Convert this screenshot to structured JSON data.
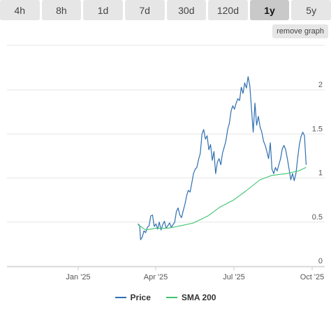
{
  "tabs": [
    {
      "label": "4h",
      "active": false
    },
    {
      "label": "8h",
      "active": false
    },
    {
      "label": "1d",
      "active": false
    },
    {
      "label": "7d",
      "active": false
    },
    {
      "label": "30d",
      "active": false
    },
    {
      "label": "120d",
      "active": false
    },
    {
      "label": "1y",
      "active": true
    },
    {
      "label": "5y",
      "active": false
    }
  ],
  "remove_graph_label": "remove graph",
  "chart_data": {
    "type": "line",
    "x_ticks": [
      "Jan '25",
      "Apr '25",
      "Jul '25",
      "Oct '25"
    ],
    "y_ticks": [
      "0",
      "0.5",
      "1",
      "1.5",
      "2"
    ],
    "ylim": [
      0,
      2.15
    ],
    "grid": true,
    "legend_placement": "bottom-center",
    "series": [
      {
        "name": "Price",
        "color": "#2e6fb0",
        "points": [
          [
            "2025-03-11",
            0.48
          ],
          [
            "2025-03-13",
            0.46
          ],
          [
            "2025-03-14",
            0.3
          ],
          [
            "2025-03-16",
            0.33
          ],
          [
            "2025-03-18",
            0.4
          ],
          [
            "2025-03-20",
            0.38
          ],
          [
            "2025-03-22",
            0.44
          ],
          [
            "2025-03-24",
            0.46
          ],
          [
            "2025-03-26",
            0.57
          ],
          [
            "2025-03-28",
            0.58
          ],
          [
            "2025-03-30",
            0.45
          ],
          [
            "2025-04-01",
            0.48
          ],
          [
            "2025-04-03",
            0.42
          ],
          [
            "2025-04-05",
            0.5
          ],
          [
            "2025-04-07",
            0.41
          ],
          [
            "2025-04-09",
            0.47
          ],
          [
            "2025-04-11",
            0.51
          ],
          [
            "2025-04-13",
            0.43
          ],
          [
            "2025-04-15",
            0.46
          ],
          [
            "2025-04-17",
            0.49
          ],
          [
            "2025-04-19",
            0.44
          ],
          [
            "2025-04-21",
            0.47
          ],
          [
            "2025-04-23",
            0.5
          ],
          [
            "2025-04-25",
            0.62
          ],
          [
            "2025-04-27",
            0.66
          ],
          [
            "2025-04-29",
            0.58
          ],
          [
            "2025-05-01",
            0.55
          ],
          [
            "2025-05-03",
            0.63
          ],
          [
            "2025-05-05",
            0.7
          ],
          [
            "2025-05-07",
            0.8
          ],
          [
            "2025-05-09",
            0.86
          ],
          [
            "2025-05-11",
            0.84
          ],
          [
            "2025-05-13",
            0.94
          ],
          [
            "2025-05-15",
            1.05
          ],
          [
            "2025-05-17",
            1.1
          ],
          [
            "2025-05-19",
            1.12
          ],
          [
            "2025-05-21",
            1.21
          ],
          [
            "2025-05-23",
            1.28
          ],
          [
            "2025-05-25",
            1.5
          ],
          [
            "2025-05-27",
            1.55
          ],
          [
            "2025-05-29",
            1.44
          ],
          [
            "2025-05-31",
            1.48
          ],
          [
            "2025-06-02",
            1.32
          ],
          [
            "2025-06-04",
            1.38
          ],
          [
            "2025-06-06",
            1.2
          ],
          [
            "2025-06-08",
            1.3
          ],
          [
            "2025-06-10",
            1.05
          ],
          [
            "2025-06-12",
            1.18
          ],
          [
            "2025-06-14",
            1.22
          ],
          [
            "2025-06-16",
            1.15
          ],
          [
            "2025-06-18",
            1.28
          ],
          [
            "2025-06-20",
            1.35
          ],
          [
            "2025-06-22",
            1.42
          ],
          [
            "2025-06-24",
            1.55
          ],
          [
            "2025-06-26",
            1.62
          ],
          [
            "2025-06-28",
            1.76
          ],
          [
            "2025-06-30",
            1.82
          ],
          [
            "2025-07-02",
            1.78
          ],
          [
            "2025-07-04",
            1.85
          ],
          [
            "2025-07-06",
            1.9
          ],
          [
            "2025-07-08",
            1.88
          ],
          [
            "2025-07-10",
            2.03
          ],
          [
            "2025-07-12",
            1.96
          ],
          [
            "2025-07-14",
            2.08
          ],
          [
            "2025-07-16",
            2.02
          ],
          [
            "2025-07-18",
            2.15
          ],
          [
            "2025-07-20",
            2.05
          ],
          [
            "2025-07-22",
            1.78
          ],
          [
            "2025-07-24",
            1.52
          ],
          [
            "2025-07-26",
            1.85
          ],
          [
            "2025-07-28",
            1.6
          ],
          [
            "2025-07-30",
            1.7
          ],
          [
            "2025-08-01",
            1.58
          ],
          [
            "2025-08-03",
            1.52
          ],
          [
            "2025-08-05",
            1.42
          ],
          [
            "2025-08-07",
            1.37
          ],
          [
            "2025-08-09",
            1.3
          ],
          [
            "2025-08-11",
            1.22
          ],
          [
            "2025-08-13",
            1.4
          ],
          [
            "2025-08-15",
            1.1
          ],
          [
            "2025-08-17",
            1.05
          ],
          [
            "2025-08-19",
            1.12
          ],
          [
            "2025-08-21",
            1.08
          ],
          [
            "2025-08-23",
            1.15
          ],
          [
            "2025-08-25",
            1.22
          ],
          [
            "2025-08-27",
            1.33
          ],
          [
            "2025-08-29",
            1.37
          ],
          [
            "2025-08-31",
            1.32
          ],
          [
            "2025-09-02",
            1.22
          ],
          [
            "2025-09-04",
            1.1
          ],
          [
            "2025-09-06",
            0.98
          ],
          [
            "2025-09-08",
            1.05
          ],
          [
            "2025-09-10",
            0.97
          ],
          [
            "2025-09-12",
            1.05
          ],
          [
            "2025-09-14",
            1.22
          ],
          [
            "2025-09-16",
            1.38
          ],
          [
            "2025-09-18",
            1.47
          ],
          [
            "2025-09-20",
            1.52
          ],
          [
            "2025-09-22",
            1.48
          ],
          [
            "2025-09-24",
            1.15
          ]
        ]
      },
      {
        "name": "SMA 200",
        "color": "#3cc46f",
        "points": [
          [
            "2025-03-11",
            0.47
          ],
          [
            "2025-03-20",
            0.41
          ],
          [
            "2025-04-01",
            0.43
          ],
          [
            "2025-04-15",
            0.43
          ],
          [
            "2025-05-01",
            0.46
          ],
          [
            "2025-05-15",
            0.49
          ],
          [
            "2025-06-01",
            0.57
          ],
          [
            "2025-06-15",
            0.67
          ],
          [
            "2025-07-01",
            0.75
          ],
          [
            "2025-07-15",
            0.85
          ],
          [
            "2025-08-01",
            0.98
          ],
          [
            "2025-08-15",
            1.03
          ],
          [
            "2025-09-01",
            1.05
          ],
          [
            "2025-09-15",
            1.08
          ],
          [
            "2025-09-24",
            1.12
          ]
        ]
      }
    ]
  }
}
